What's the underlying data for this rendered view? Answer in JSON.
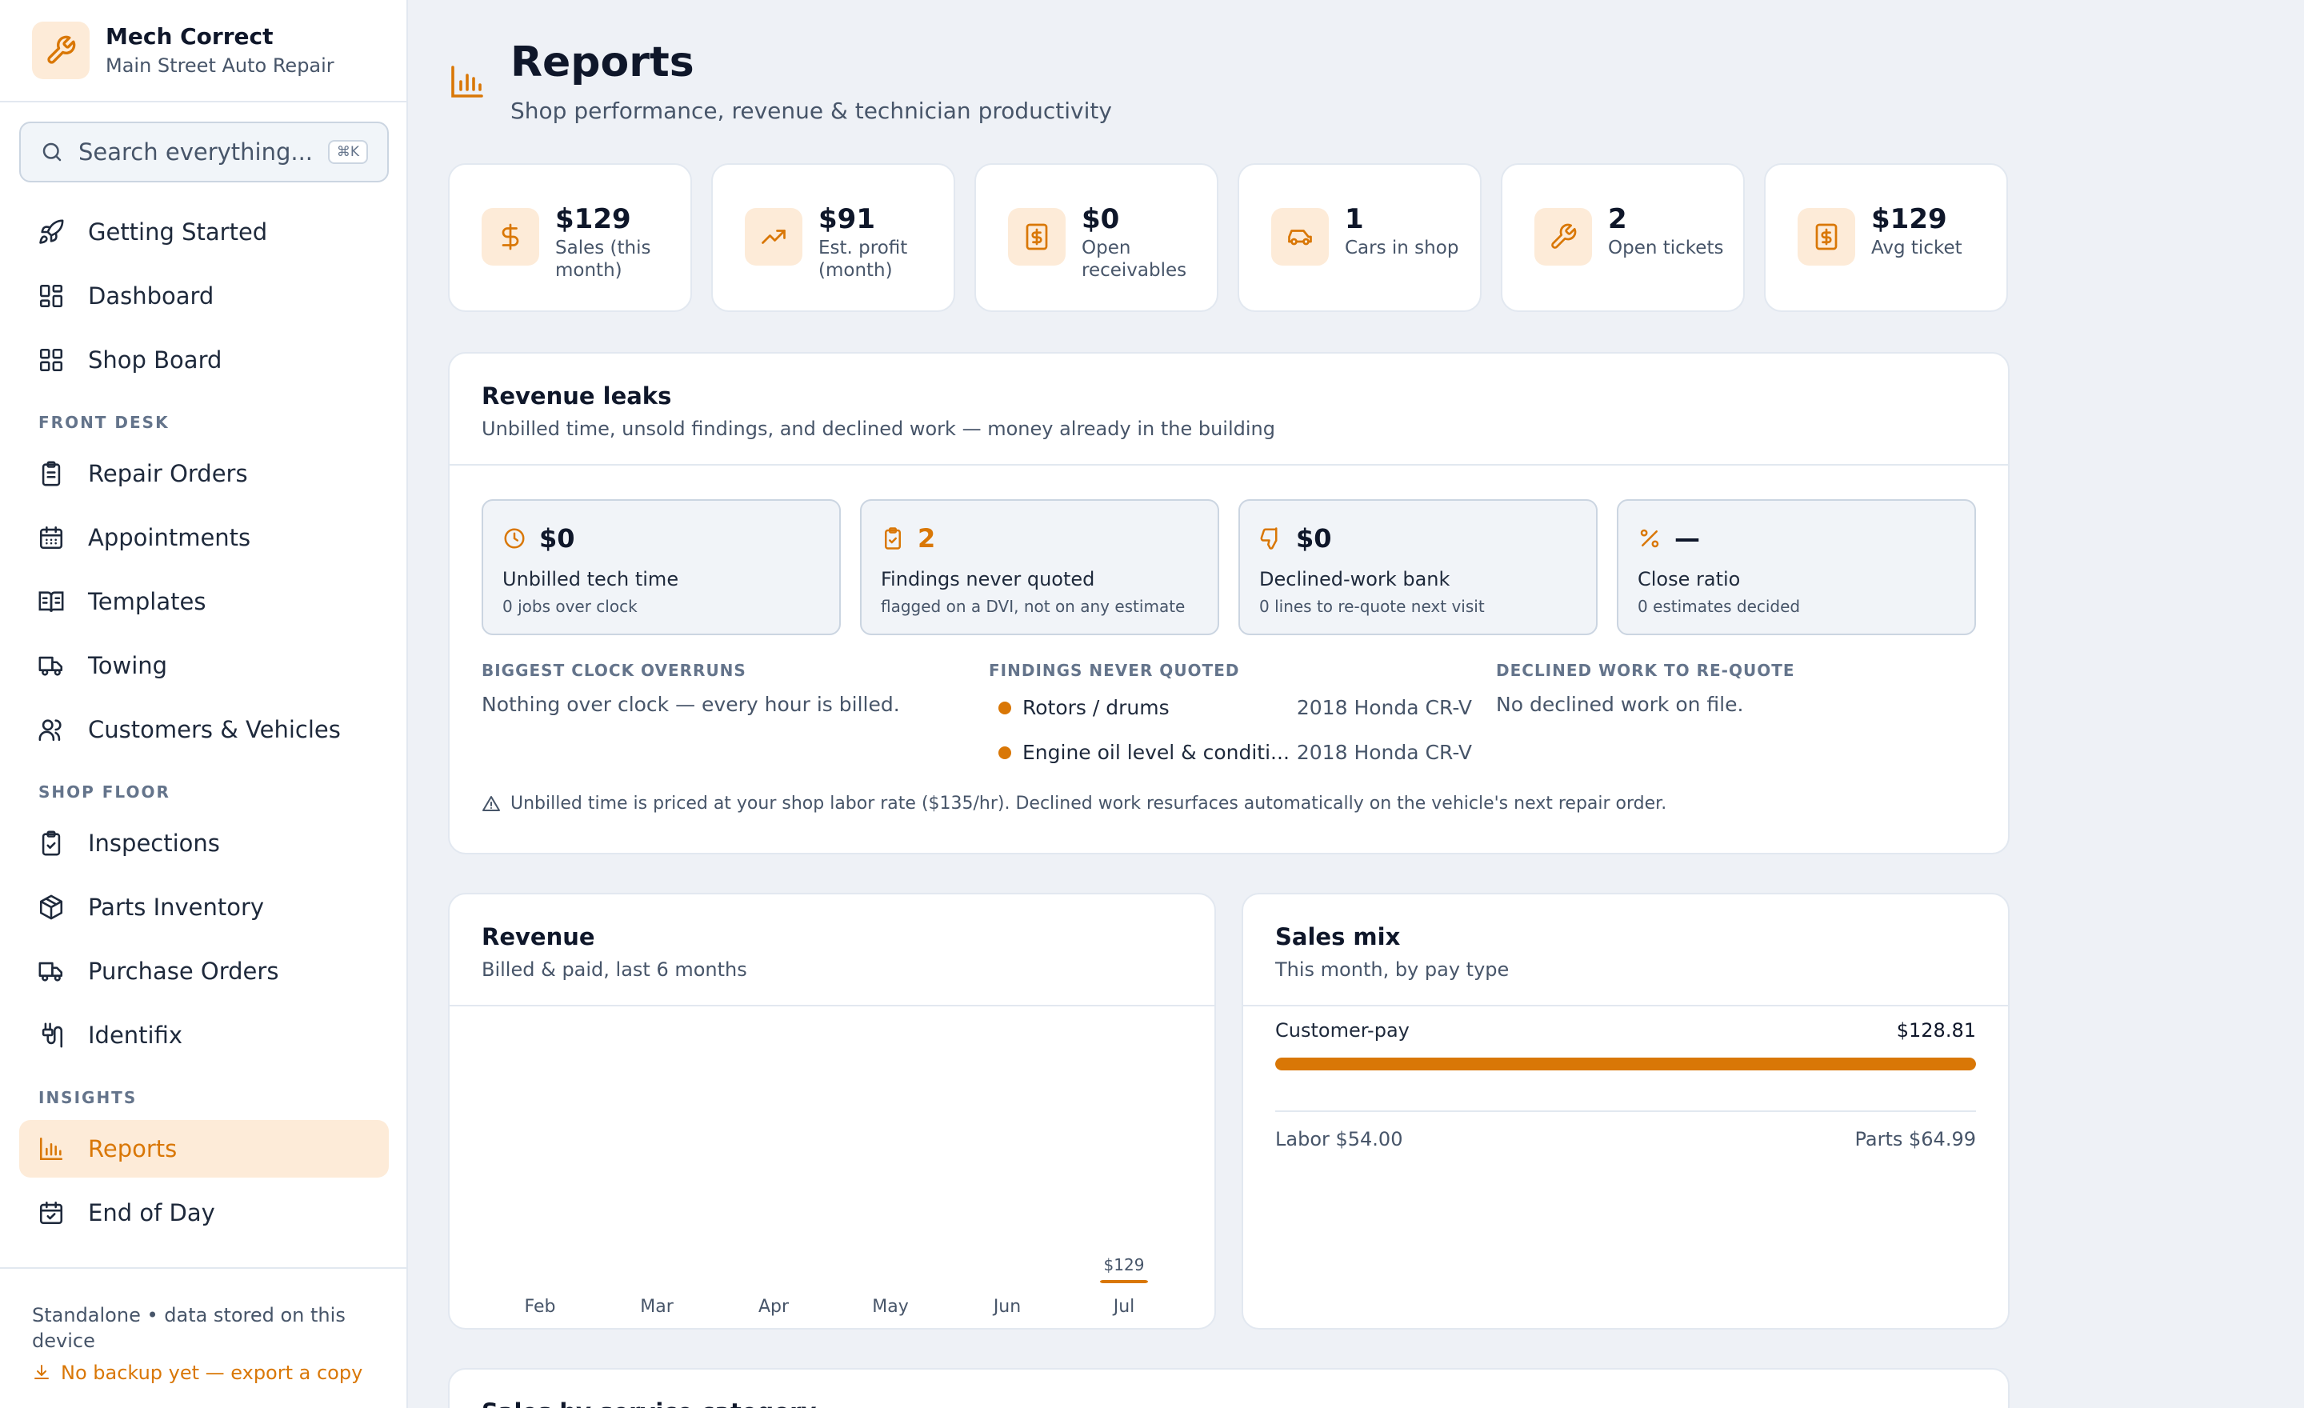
{
  "brand": {
    "name": "Mech Correct",
    "subtitle": "Main Street Auto Repair"
  },
  "search": {
    "placeholder": "Search everything...",
    "shortcut": "⌘K"
  },
  "nav": {
    "top": [
      {
        "label": "Getting Started",
        "icon": "rocket-icon"
      },
      {
        "label": "Dashboard",
        "icon": "grid-icon"
      },
      {
        "label": "Shop Board",
        "icon": "grid-icon"
      }
    ],
    "front_desk_title": "FRONT DESK",
    "front_desk": [
      {
        "label": "Repair Orders",
        "icon": "clipboard-icon"
      },
      {
        "label": "Appointments",
        "icon": "calendar-icon"
      },
      {
        "label": "Templates",
        "icon": "book-icon"
      },
      {
        "label": "Towing",
        "icon": "truck-icon"
      },
      {
        "label": "Customers & Vehicles",
        "icon": "users-icon"
      }
    ],
    "shop_floor_title": "SHOP FLOOR",
    "shop_floor": [
      {
        "label": "Inspections",
        "icon": "clipboard-check-icon"
      },
      {
        "label": "Parts Inventory",
        "icon": "box-icon"
      },
      {
        "label": "Purchase Orders",
        "icon": "truck-icon"
      },
      {
        "label": "Identifix",
        "icon": "plug-icon"
      }
    ],
    "insights_title": "INSIGHTS",
    "insights": [
      {
        "label": "Reports",
        "icon": "bar-chart-icon",
        "active": true
      },
      {
        "label": "End of Day",
        "icon": "calendar-check-icon"
      }
    ]
  },
  "footer": {
    "note": "Standalone • data stored on this device",
    "backup_link": "No backup yet — export a copy"
  },
  "page": {
    "title": "Reports",
    "subtitle": "Shop performance, revenue & technician productivity"
  },
  "kpis": [
    {
      "value": "$129",
      "label": "Sales (this month)",
      "icon": "dollar-icon"
    },
    {
      "value": "$91",
      "label": "Est. profit (month)",
      "icon": "trending-up-icon"
    },
    {
      "value": "$0",
      "label": "Open receivables",
      "icon": "receipt-icon"
    },
    {
      "value": "1",
      "label": "Cars in shop",
      "icon": "car-icon"
    },
    {
      "value": "2",
      "label": "Open tickets",
      "icon": "wrench-icon"
    },
    {
      "value": "$129",
      "label": "Avg ticket",
      "icon": "receipt-icon"
    }
  ],
  "leaks": {
    "title": "Revenue leaks",
    "subtitle": "Unbilled time, unsold findings, and declined work — money already in the building",
    "tiles": [
      {
        "value": "$0",
        "label": "Unbilled tech time",
        "detail": "0 jobs over clock",
        "icon": "clock-icon"
      },
      {
        "value": "2",
        "label": "Findings never quoted",
        "detail": "flagged on a DVI, not on any estimate",
        "icon": "clipboard-check-icon"
      },
      {
        "value": "$0",
        "label": "Declined-work bank",
        "detail": "0 lines to re-quote next visit",
        "icon": "thumbs-down-icon"
      },
      {
        "value": "—",
        "label": "Close ratio",
        "detail": "0 estimates decided",
        "icon": "percent-icon"
      }
    ],
    "overruns": {
      "title": "BIGGEST CLOCK OVERRUNS",
      "text": "Nothing over clock — every hour is billed."
    },
    "findings": {
      "title": "FINDINGS NEVER QUOTED",
      "items": [
        {
          "name": "Rotors / drums",
          "vehicle": "2018 Honda CR-V"
        },
        {
          "name": "Engine oil level & conditi...",
          "vehicle": "2018 Honda CR-V"
        }
      ]
    },
    "declined": {
      "title": "DECLINED WORK TO RE-QUOTE",
      "text": "No declined work on file."
    },
    "note": "Unbilled time is priced at your shop labor rate ($135/hr). Declined work resurfaces automatically on the vehicle's next repair order."
  },
  "revenue": {
    "title": "Revenue",
    "subtitle": "Billed & paid, last 6 months"
  },
  "chart_data": {
    "type": "bar",
    "categories": [
      "Feb",
      "Mar",
      "Apr",
      "May",
      "Jun",
      "Jul"
    ],
    "values": [
      0,
      0,
      0,
      0,
      0,
      128.81
    ],
    "data_labels": [
      "",
      "",
      "",
      "",
      "",
      "$129"
    ],
    "title": "Revenue",
    "subtitle": "Billed & paid, last 6 months",
    "color": "#d97706"
  },
  "sales_mix": {
    "title": "Sales mix",
    "subtitle": "This month, by pay type",
    "rows": [
      {
        "label": "Customer-pay",
        "value": "$128.81",
        "fraction": 1.0
      }
    ],
    "labor": "Labor $54.00",
    "parts": "Parts $64.99"
  },
  "category_card": {
    "title": "Sales by service category"
  },
  "colors": {
    "accent": "#d97706",
    "accent_bg": "#fdebd8",
    "page_bg": "#eef1f6"
  }
}
